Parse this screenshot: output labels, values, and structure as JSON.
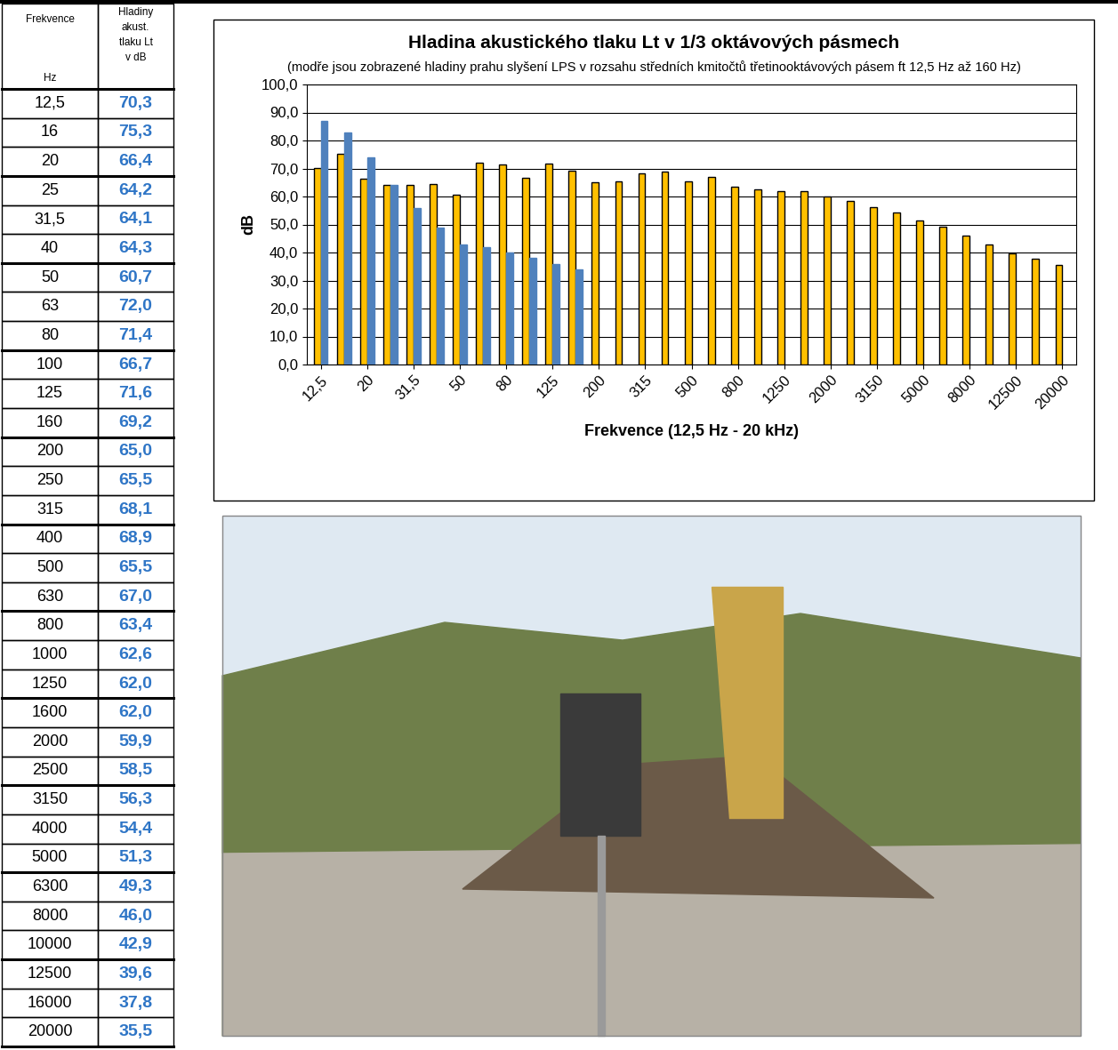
{
  "table": {
    "header": [
      [
        "Frekvence",
        "Hz"
      ],
      [
        "Hladiny",
        "akust.",
        "tlaku Lt",
        "v dB"
      ]
    ],
    "rows": [
      [
        "12,5",
        "70,3"
      ],
      [
        "16",
        "75,3"
      ],
      [
        "20",
        "66,4"
      ],
      [
        "25",
        "64,2"
      ],
      [
        "31,5",
        "64,1"
      ],
      [
        "40",
        "64,3"
      ],
      [
        "50",
        "60,7"
      ],
      [
        "63",
        "72,0"
      ],
      [
        "80",
        "71,4"
      ],
      [
        "100",
        "66,7"
      ],
      [
        "125",
        "71,6"
      ],
      [
        "160",
        "69,2"
      ],
      [
        "200",
        "65,0"
      ],
      [
        "250",
        "65,5"
      ],
      [
        "315",
        "68,1"
      ],
      [
        "400",
        "68,9"
      ],
      [
        "500",
        "65,5"
      ],
      [
        "630",
        "67,0"
      ],
      [
        "800",
        "63,4"
      ],
      [
        "1000",
        "62,6"
      ],
      [
        "1250",
        "62,0"
      ],
      [
        "1600",
        "62,0"
      ],
      [
        "2000",
        "59,9"
      ],
      [
        "2500",
        "58,5"
      ],
      [
        "3150",
        "56,3"
      ],
      [
        "4000",
        "54,4"
      ],
      [
        "5000",
        "51,3"
      ],
      [
        "6300",
        "49,3"
      ],
      [
        "8000",
        "46,0"
      ],
      [
        "10000",
        "42,9"
      ],
      [
        "12500",
        "39,6"
      ],
      [
        "16000",
        "37,8"
      ],
      [
        "20000",
        "35,5"
      ]
    ]
  },
  "chart_data": {
    "type": "bar",
    "title": "Hladina akustického tlaku Lt v 1/3 oktávových pásmech",
    "subtitle": "(modře jsou zobrazené hladiny prahu slyšení LPS v rozsahu středních kmitočtů třetinooktávových pásem ft 12,5 Hz až 160 Hz)",
    "xlabel": "Frekvence (12,5 Hz - 20 kHz)",
    "ylabel": "dB",
    "categories": [
      "12,5",
      null,
      "20",
      null,
      "31,5",
      null,
      "50",
      null,
      "80",
      null,
      "125",
      null,
      "200",
      null,
      "315",
      null,
      "500",
      null,
      "800",
      null,
      "1250",
      null,
      "2000",
      null,
      "3150",
      null,
      "5000",
      null,
      "8000",
      null,
      "12500",
      null,
      "20000"
    ],
    "series": [
      {
        "color": "#FFC000",
        "values": [
          70.3,
          75.3,
          66.4,
          64.2,
          64.1,
          64.3,
          60.7,
          72.0,
          71.4,
          66.7,
          71.6,
          69.2,
          65.0,
          65.5,
          68.1,
          68.9,
          65.5,
          67.0,
          63.4,
          62.6,
          62.0,
          62.0,
          59.9,
          58.5,
          56.3,
          54.4,
          51.3,
          49.3,
          46.0,
          42.9,
          39.6,
          37.8,
          35.5
        ]
      },
      {
        "color": "#4F81BD",
        "values": [
          87,
          83,
          74,
          64,
          56,
          49,
          43,
          42,
          40,
          38,
          36,
          34,
          null,
          null,
          null,
          null,
          null,
          null,
          null,
          null,
          null,
          null,
          null,
          null,
          null,
          null,
          null,
          null,
          null,
          null,
          null,
          null,
          null
        ]
      }
    ],
    "ylim": [
      0,
      100
    ],
    "yticks": [
      {
        "value": 0,
        "label": "0,0"
      },
      {
        "value": 10,
        "label": "10,0"
      },
      {
        "value": 20,
        "label": "20,0"
      },
      {
        "value": 30,
        "label": "30,0"
      },
      {
        "value": 40,
        "label": "40,0"
      },
      {
        "value": 50,
        "label": "50,0"
      },
      {
        "value": 60,
        "label": "60,0"
      },
      {
        "value": 70,
        "label": "70,0"
      },
      {
        "value": 80,
        "label": "80,0"
      },
      {
        "value": 90,
        "label": "90,0"
      },
      {
        "value": 100,
        "label": "100,0"
      }
    ],
    "grid": true
  }
}
